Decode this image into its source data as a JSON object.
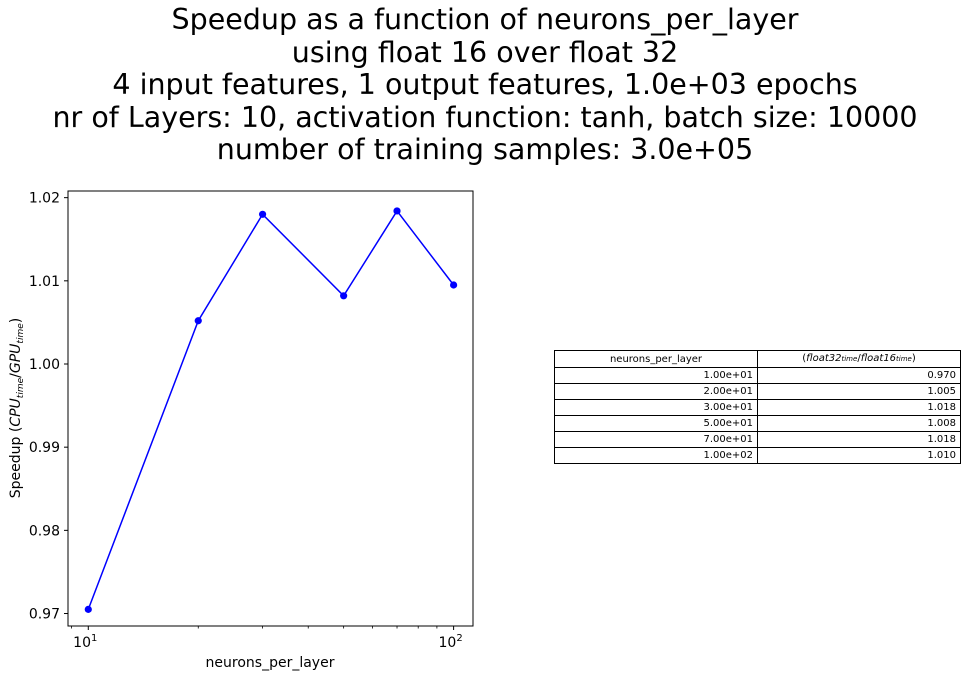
{
  "title_lines": [
    "Speedup as a function of neurons_per_layer",
    "using float 16 over float 32",
    "4 input features, 1 output features, 1.0e+03 epochs",
    "nr of Layers: 10, activation function: tanh, batch size: 10000",
    "number of training samples: 3.0e+05"
  ],
  "chart_data": {
    "type": "line",
    "x": [
      10,
      20,
      30,
      50,
      70,
      100
    ],
    "series": [
      {
        "values": [
          0.9705,
          1.0052,
          1.018,
          1.0082,
          1.0184,
          1.0095
        ],
        "color": "#0000ff",
        "marker": "circle"
      }
    ],
    "xlabel": "neurons_per_layer",
    "ylabel": "Speedup",
    "ylabel_ratio": {
      "num": "CPU",
      "num_sub": "time",
      "den": "GPU",
      "den_sub": "time"
    },
    "xscale": "log",
    "xlim": [
      8.8,
      113
    ],
    "ylim": [
      0.9685,
      1.0208
    ],
    "y_ticks": [
      "0.97",
      "0.98",
      "0.99",
      "1.00",
      "1.01",
      "1.02"
    ],
    "x_ticks": [
      {
        "value": 10,
        "base": "10",
        "exp": "1"
      },
      {
        "value": 100,
        "base": "10",
        "exp": "2"
      }
    ],
    "grid": false
  },
  "table": {
    "col1_header": "neurons_per_layer",
    "col2_header": {
      "a": "float32",
      "a_sub": "time",
      "b": "float16",
      "b_sub": "time"
    },
    "rows": [
      [
        "1.00e+01",
        "0.970"
      ],
      [
        "2.00e+01",
        "1.005"
      ],
      [
        "3.00e+01",
        "1.018"
      ],
      [
        "5.00e+01",
        "1.008"
      ],
      [
        "7.00e+01",
        "1.018"
      ],
      [
        "1.00e+02",
        "1.010"
      ]
    ]
  }
}
